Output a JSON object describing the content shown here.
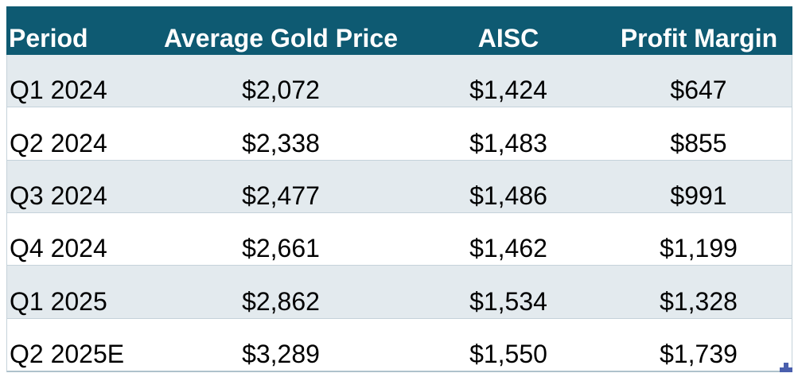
{
  "table": {
    "columns": [
      "Period",
      "Average Gold Price",
      "AISC",
      "Profit Margin"
    ],
    "rows": [
      [
        "Q1 2024",
        "$2,072",
        "$1,424",
        "$647"
      ],
      [
        "Q2 2024",
        "$2,338",
        "$1,483",
        "$855"
      ],
      [
        "Q3 2024",
        "$2,477",
        "$1,486",
        "$991"
      ],
      [
        "Q4 2024",
        "$2,661",
        "$1,462",
        "$1,199"
      ],
      [
        "Q1 2025",
        "$2,862",
        "$1,534",
        "$1,328"
      ],
      [
        "Q2 2025E",
        "$3,289",
        "$1,550",
        "$1,739"
      ]
    ]
  },
  "colors": {
    "header_bg": "#0E5A72",
    "header_text": "#FFFFFF",
    "band_row_bg": "#E3EAEE",
    "plain_row_bg": "#FFFFFF",
    "grid_line": "#C5D2DA",
    "outer_border": "#AFC2CC",
    "resize_handle": "#4A5FAD"
  }
}
